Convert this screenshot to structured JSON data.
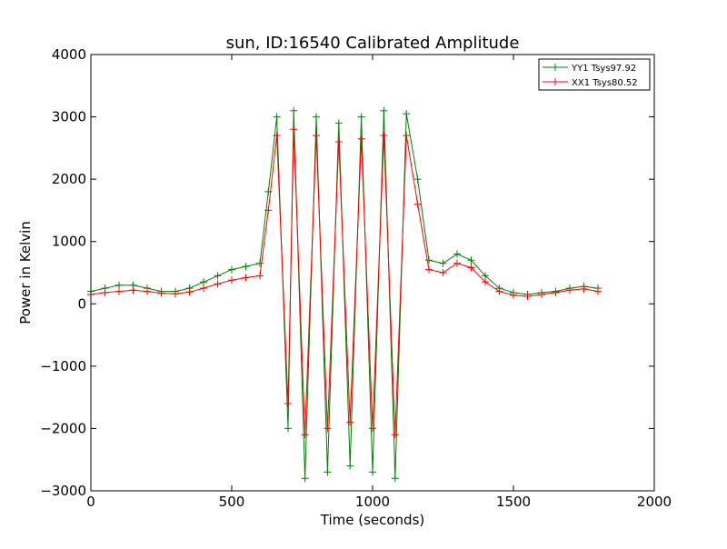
{
  "chart_data": {
    "type": "line",
    "title": "sun, ID:16540 Calibrated Amplitude",
    "xlabel": "Time (seconds)",
    "ylabel": "Power in Kelvin",
    "xlim": [
      0,
      2000
    ],
    "ylim": [
      -3000,
      4000
    ],
    "xticks": [
      0,
      500,
      1000,
      1500,
      2000
    ],
    "xtick_labels": [
      "0",
      "500",
      "1000",
      "1500",
      "2000"
    ],
    "yticks": [
      -3000,
      -2000,
      -1000,
      0,
      1000,
      2000,
      3000,
      4000
    ],
    "ytick_labels": [
      "−3000",
      "−2000",
      "−1000",
      "0",
      "1000",
      "2000",
      "3000",
      "4000"
    ],
    "grid": false,
    "legend_position": "top-right",
    "series": [
      {
        "name": "YY1 Tsys97.92",
        "color": "#008000",
        "marker": "+",
        "x": [
          0,
          50,
          100,
          150,
          200,
          250,
          300,
          350,
          400,
          450,
          500,
          550,
          600,
          630,
          660,
          700,
          720,
          760,
          800,
          840,
          880,
          920,
          960,
          1000,
          1040,
          1080,
          1120,
          1160,
          1200,
          1250,
          1300,
          1350,
          1400,
          1450,
          1500,
          1550,
          1600,
          1650,
          1700,
          1750,
          1800
        ],
        "y": [
          200,
          250,
          300,
          300,
          250,
          200,
          200,
          250,
          350,
          450,
          550,
          600,
          650,
          1800,
          3000,
          -2000,
          3100,
          -2800,
          3000,
          -2700,
          2900,
          -2600,
          3000,
          -2700,
          3100,
          -2800,
          3050,
          2000,
          700,
          650,
          800,
          700,
          450,
          250,
          180,
          150,
          180,
          200,
          250,
          280,
          250
        ]
      },
      {
        "name": "XX1 Tsys80.52",
        "color": "#ff0000",
        "marker": "+",
        "x": [
          0,
          50,
          100,
          150,
          200,
          250,
          300,
          350,
          400,
          450,
          500,
          550,
          600,
          630,
          660,
          700,
          720,
          760,
          800,
          840,
          880,
          920,
          960,
          1000,
          1040,
          1080,
          1120,
          1160,
          1200,
          1250,
          1300,
          1350,
          1400,
          1450,
          1500,
          1550,
          1600,
          1650,
          1700,
          1750,
          1800
        ],
        "y": [
          150,
          180,
          200,
          220,
          200,
          170,
          160,
          190,
          250,
          320,
          380,
          420,
          450,
          1500,
          2700,
          -1600,
          2800,
          -2100,
          2700,
          -2000,
          2600,
          -1900,
          2650,
          -2000,
          2700,
          -2100,
          2700,
          1600,
          550,
          500,
          650,
          580,
          350,
          200,
          140,
          120,
          150,
          180,
          220,
          240,
          200
        ]
      }
    ]
  }
}
